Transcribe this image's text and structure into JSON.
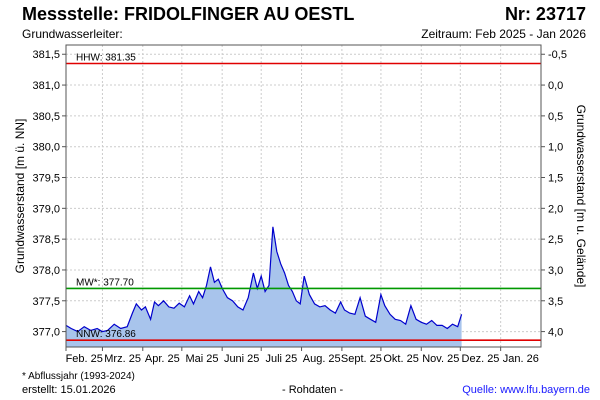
{
  "header": {
    "title": "Messstelle: FRIDOLFINGER AU OESTL",
    "nr": "Nr: 23717",
    "aquifer": "Grundwasserleiter:",
    "period": "Zeitraum: Feb 2025 - Jan 2026"
  },
  "footer": {
    "footnote": "* Abflussjahr (1993-2024)",
    "created": "erstellt:  15.01.2026",
    "rawdata": "- Rohdaten -",
    "source": "Quelle: www.lfu.bayern.de"
  },
  "colors": {
    "line": "#0000cc",
    "fill": "#a8c4ec",
    "hhw": "#e00000",
    "nnw": "#e00000",
    "mw": "#009900",
    "grid": "#cccccc"
  },
  "chart_data": {
    "type": "area",
    "ylabel_left": "Grundwasserstand [m ü. NN]",
    "ylabel_right": "Grundwasserstand [m u. Gelände]",
    "ylim": [
      376.75,
      381.65
    ],
    "left_ticks": [
      "381,5",
      "381,0",
      "380,5",
      "380,0",
      "379,5",
      "379,0",
      "378,5",
      "378,0",
      "377,5",
      "377,0"
    ],
    "left_tick_values": [
      381.5,
      381.0,
      380.5,
      380.0,
      379.5,
      379.0,
      378.5,
      378.0,
      377.5,
      377.0
    ],
    "right_ticks": [
      "-0,5",
      "0,0",
      "0,5",
      "1,0",
      "1,5",
      "2,0",
      "2,5",
      "3,0",
      "3,5",
      "4,0"
    ],
    "x_labels": [
      "Feb. 25",
      "Mrz. 25",
      "Apr. 25",
      "Mai 25",
      "Juni 25",
      "Juli 25",
      "Aug. 25",
      "Sept. 25",
      "Okt. 25",
      "Nov. 25",
      "Dez. 25",
      "Jan. 26"
    ],
    "x_month_start": [
      "2025-02-01",
      "2025-03-01",
      "2025-04-01",
      "2025-05-01",
      "2025-06-01",
      "2025-07-01",
      "2025-08-01",
      "2025-09-01",
      "2025-10-01",
      "2025-11-01",
      "2025-12-01",
      "2026-01-01"
    ],
    "reference_lines": [
      {
        "label": "HHW: 381.35",
        "value": 381.35,
        "key": "hhw"
      },
      {
        "label": "MW*: 377.70",
        "value": 377.7,
        "key": "mw"
      },
      {
        "label": "NNW: 376.86",
        "value": 376.86,
        "key": "nnw"
      }
    ],
    "series": [
      {
        "x": [
          "2025-02-01",
          "2025-02-05",
          "2025-02-10",
          "2025-02-15",
          "2025-02-20",
          "2025-02-25",
          "2025-03-01",
          "2025-03-05",
          "2025-03-10",
          "2025-03-15",
          "2025-03-20",
          "2025-03-24",
          "2025-03-27",
          "2025-03-31",
          "2025-04-03",
          "2025-04-07",
          "2025-04-10",
          "2025-04-13",
          "2025-04-17",
          "2025-04-21",
          "2025-04-25",
          "2025-04-29",
          "2025-05-03",
          "2025-05-07",
          "2025-05-10",
          "2025-05-14",
          "2025-05-17",
          "2025-05-20",
          "2025-05-23",
          "2025-05-26",
          "2025-05-29",
          "2025-06-01",
          "2025-06-05",
          "2025-06-09",
          "2025-06-13",
          "2025-06-17",
          "2025-06-21",
          "2025-06-25",
          "2025-06-28",
          "2025-07-01",
          "2025-07-04",
          "2025-07-07",
          "2025-07-10",
          "2025-07-13",
          "2025-07-16",
          "2025-07-19",
          "2025-07-22",
          "2025-07-25",
          "2025-07-28",
          "2025-07-31",
          "2025-08-03",
          "2025-08-07",
          "2025-08-11",
          "2025-08-15",
          "2025-08-19",
          "2025-08-23",
          "2025-08-27",
          "2025-08-31",
          "2025-09-03",
          "2025-09-07",
          "2025-09-11",
          "2025-09-15",
          "2025-09-19",
          "2025-09-23",
          "2025-09-27",
          "2025-10-01",
          "2025-10-04",
          "2025-10-08",
          "2025-10-12",
          "2025-10-16",
          "2025-10-20",
          "2025-10-24",
          "2025-10-28",
          "2025-11-01",
          "2025-11-05",
          "2025-11-09",
          "2025-11-13",
          "2025-11-17",
          "2025-11-21",
          "2025-11-25",
          "2025-11-29",
          "2025-12-02"
        ],
        "y": [
          377.1,
          377.05,
          377.0,
          377.08,
          377.02,
          377.05,
          377.0,
          377.02,
          377.12,
          377.05,
          377.08,
          377.3,
          377.45,
          377.35,
          377.4,
          377.2,
          377.48,
          377.42,
          377.5,
          377.4,
          377.38,
          377.46,
          377.4,
          377.58,
          377.45,
          377.65,
          377.55,
          377.75,
          378.05,
          377.8,
          377.85,
          377.7,
          377.55,
          377.5,
          377.4,
          377.35,
          377.55,
          377.95,
          377.7,
          377.9,
          377.65,
          377.75,
          378.7,
          378.3,
          378.1,
          377.95,
          377.75,
          377.65,
          377.5,
          377.45,
          377.9,
          377.6,
          377.45,
          377.4,
          377.42,
          377.35,
          377.3,
          377.48,
          377.35,
          377.3,
          377.28,
          377.55,
          377.25,
          377.2,
          377.15,
          377.6,
          377.42,
          377.28,
          377.2,
          377.18,
          377.12,
          377.42,
          377.2,
          377.15,
          377.12,
          377.18,
          377.1,
          377.1,
          377.05,
          377.12,
          377.08,
          377.28
        ]
      }
    ]
  }
}
